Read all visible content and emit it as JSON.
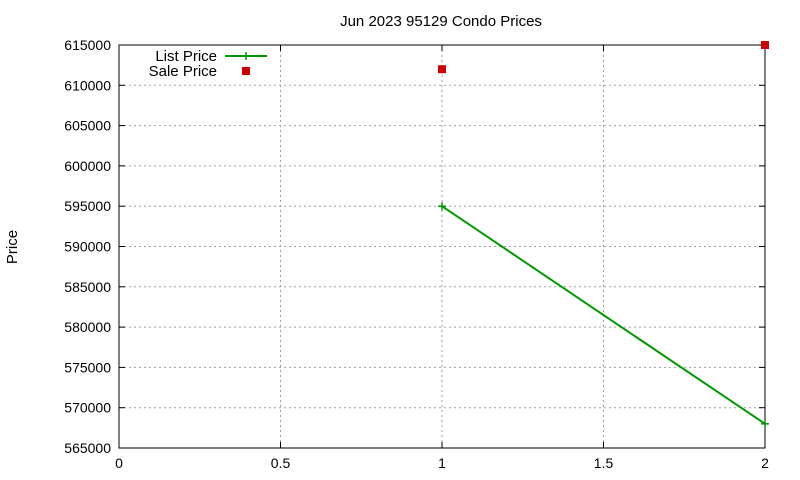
{
  "chart_data": {
    "type": "line",
    "title": "Jun 2023 95129 Condo Prices",
    "xlabel": "",
    "ylabel": "Price",
    "xlim": [
      0,
      2
    ],
    "ylim": [
      565000,
      615000
    ],
    "x_ticks": [
      0,
      0.5,
      1,
      1.5,
      2
    ],
    "x_tick_labels": [
      "0",
      "0.5",
      "1",
      "1.5",
      "2"
    ],
    "y_ticks": [
      565000,
      570000,
      575000,
      580000,
      585000,
      590000,
      595000,
      600000,
      605000,
      610000,
      615000
    ],
    "y_tick_labels": [
      "565000",
      "570000",
      "575000",
      "580000",
      "585000",
      "590000",
      "595000",
      "600000",
      "605000",
      "610000",
      "615000"
    ],
    "grid": true,
    "legend_position": "top-left",
    "series": [
      {
        "name": "List Price",
        "style": "line-with-plus-markers",
        "color": "#009900",
        "x": [
          1,
          2
        ],
        "y": [
          595000,
          568000
        ]
      },
      {
        "name": "Sale Price",
        "style": "square-markers",
        "color": "#cc0000",
        "x": [
          1,
          2
        ],
        "y": [
          612000,
          615000
        ]
      }
    ]
  }
}
